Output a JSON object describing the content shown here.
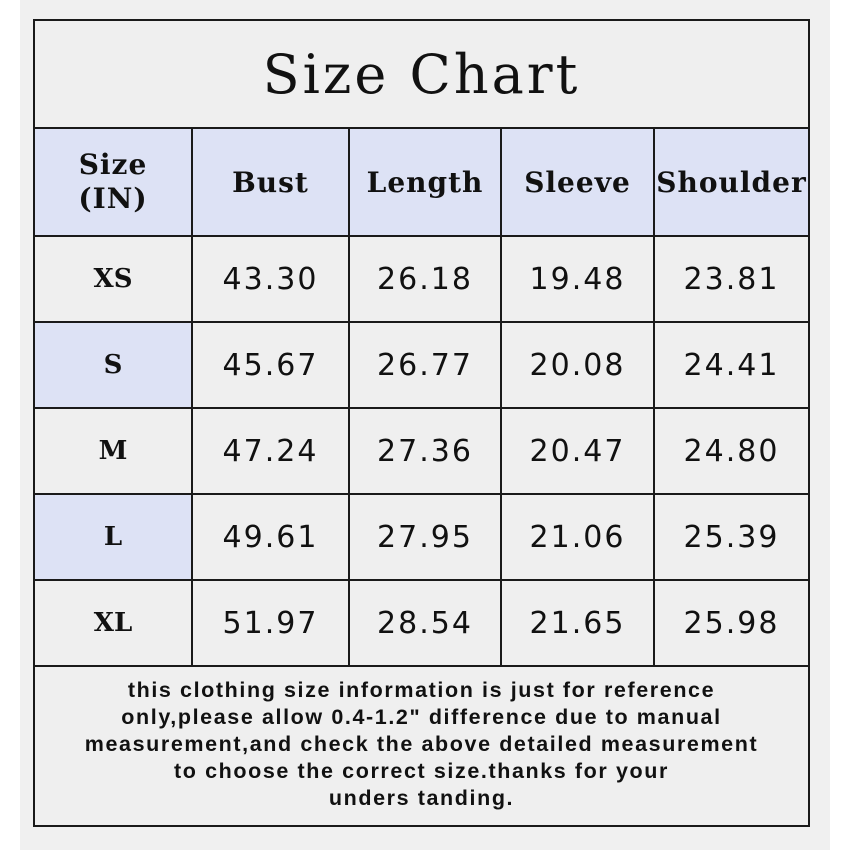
{
  "title": "Size Chart",
  "headers": {
    "size_line1": "Size",
    "size_line2": "(IN)",
    "bust": "Bust",
    "length": "Length",
    "sleeve": "Sleeve",
    "shoulder": "Shoulder"
  },
  "rows": [
    {
      "size": "XS",
      "bust": "43.30",
      "length": "26.18",
      "sleeve": "19.48",
      "shoulder": "23.81",
      "highlight": false
    },
    {
      "size": "S",
      "bust": "45.67",
      "length": "26.77",
      "sleeve": "20.08",
      "shoulder": "24.41",
      "highlight": true
    },
    {
      "size": "M",
      "bust": "47.24",
      "length": "27.36",
      "sleeve": "20.47",
      "shoulder": "24.80",
      "highlight": false
    },
    {
      "size": "L",
      "bust": "49.61",
      "length": "27.95",
      "sleeve": "21.06",
      "shoulder": "25.39",
      "highlight": true
    },
    {
      "size": "XL",
      "bust": "51.97",
      "length": "28.54",
      "sleeve": "21.65",
      "shoulder": "25.98",
      "highlight": false
    }
  ],
  "note_lines": [
    "this clothing size information is just for reference",
    "only,please allow 0.4-1.2\" difference due to manual",
    "measurement,and check the above detailed measurement",
    "to choose the correct size.thanks for your",
    "unders tanding."
  ],
  "colors": {
    "header_bg": "#dde2f5",
    "cell_bg": "#efefef",
    "border": "#1a1a1a"
  }
}
